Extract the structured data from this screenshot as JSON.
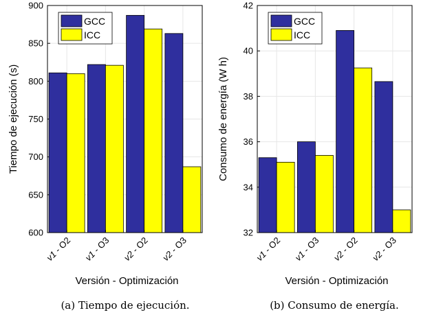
{
  "colors": {
    "gcc": "#2f2f9e",
    "icc": "#ffff00",
    "grid": "#e6e6e6"
  },
  "chart_data": [
    {
      "type": "bar",
      "categories": [
        "v1 - O2",
        "v1 - O3",
        "v2 - O2",
        "v2 - O3"
      ],
      "series": [
        {
          "name": "GCC",
          "values": [
            811,
            822,
            887,
            863
          ]
        },
        {
          "name": "ICC",
          "values": [
            810,
            821,
            869,
            687
          ]
        }
      ],
      "xlabel": "Versión - Optimización",
      "ylabel": "Tiempo de ejecución (s)",
      "ylim": [
        600,
        900
      ],
      "yticks": [
        600,
        650,
        700,
        750,
        800,
        850,
        900
      ],
      "grid": true,
      "legend": "top-left",
      "caption": "(a) Tiempo de ejecución."
    },
    {
      "type": "bar",
      "categories": [
        "v1 - O2",
        "v1 - O3",
        "v2 - O2",
        "v2 - O3"
      ],
      "series": [
        {
          "name": "GCC",
          "values": [
            35.3,
            36.0,
            40.9,
            38.65
          ]
        },
        {
          "name": "ICC",
          "values": [
            35.1,
            35.4,
            39.25,
            33.0
          ]
        }
      ],
      "xlabel": "Versión - Optimización",
      "ylabel": "Consumo de energía (W    h)",
      "ylim": [
        32,
        42
      ],
      "yticks": [
        32,
        34,
        36,
        38,
        40,
        42
      ],
      "grid": true,
      "legend": "top-left",
      "caption": "(b) Consumo de energía."
    }
  ]
}
